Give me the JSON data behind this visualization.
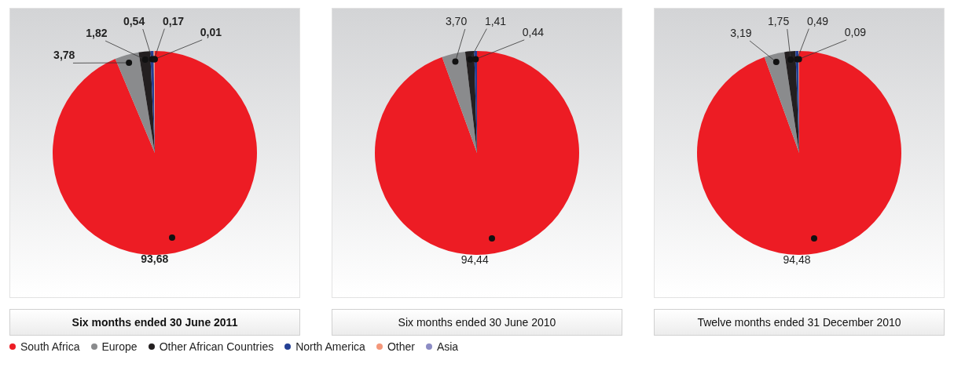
{
  "chart_data": [
    {
      "type": "pie",
      "title": "Six months ended 30 June 2011",
      "categories": [
        "South Africa",
        "Europe",
        "Other African Countries",
        "North America",
        "Other",
        "Asia"
      ],
      "values": [
        93.68,
        3.78,
        1.82,
        0.54,
        0.17,
        0.01
      ],
      "colors": [
        "#ed1c24",
        "#8a8b8d",
        "#231f20",
        "#233f94",
        "#f4977a",
        "#8c8cc4"
      ],
      "value_labels": [
        "93,68",
        "3,78",
        "1,82",
        "0,54",
        "0,17",
        "0,01"
      ],
      "legend": "bottom"
    },
    {
      "type": "pie",
      "title": "Six months ended 30 June 2010",
      "values": [
        94.44,
        3.7,
        1.41,
        0.44,
        null,
        null
      ],
      "colors": [
        "#ed1c24",
        "#8a8b8d",
        "#231f20",
        "#233f94",
        "#f4977a",
        "#8c8cc4"
      ],
      "value_labels": [
        "94,44",
        "3,70",
        "1,41",
        "0,44",
        null,
        null
      ]
    },
    {
      "type": "pie",
      "title": "Twelve months ended 31 December 2010",
      "values": [
        94.48,
        3.19,
        1.75,
        0.49,
        0.09,
        null
      ],
      "colors": [
        "#ed1c24",
        "#8a8b8d",
        "#231f20",
        "#233f94",
        "#f4977a",
        "#8c8cc4"
      ],
      "value_labels": [
        "94,48",
        "3,19",
        "1,75",
        "0,49",
        "0,09",
        null
      ]
    }
  ]
}
